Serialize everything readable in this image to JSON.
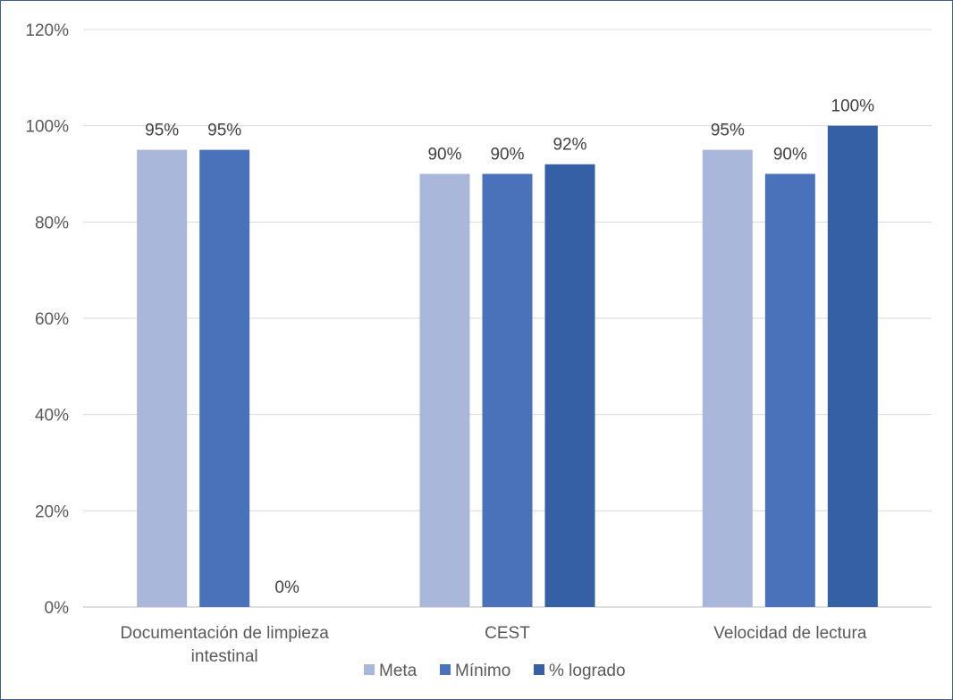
{
  "chart_data": {
    "type": "bar",
    "categories": [
      [
        "Documentación de limpieza",
        "intestinal"
      ],
      [
        "CEST"
      ],
      [
        "Velocidad de lectura"
      ]
    ],
    "series": [
      {
        "name": "Meta",
        "values": [
          95,
          90,
          95
        ],
        "labels": [
          "95%",
          "90%",
          "95%"
        ],
        "color": "#a9b7da"
      },
      {
        "name": "Mínimo",
        "values": [
          95,
          90,
          90
        ],
        "labels": [
          "95%",
          "90%",
          "90%"
        ],
        "color": "#4a72bb"
      },
      {
        "name": "% logrado",
        "values": [
          0,
          92,
          100
        ],
        "labels": [
          "0%",
          "92%",
          "100%"
        ],
        "color": "#3660a6"
      }
    ],
    "ylim": [
      0,
      120
    ],
    "yticks": [
      "0%",
      "20%",
      "40%",
      "60%",
      "80%",
      "100%",
      "120%"
    ],
    "ytick_values": [
      0,
      20,
      40,
      60,
      80,
      100,
      120
    ],
    "grid": true,
    "legend": "bottom",
    "title": "",
    "xlabel": "",
    "ylabel": ""
  }
}
